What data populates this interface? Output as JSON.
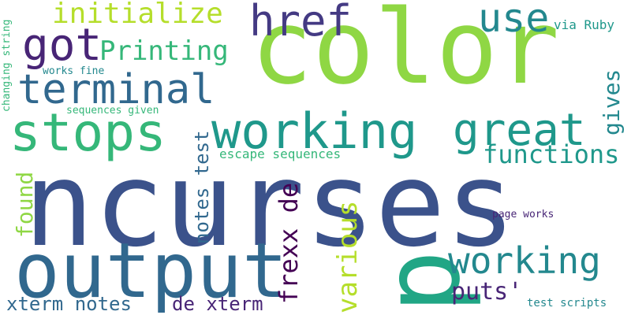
{
  "colors": {
    "lime": "#8fd744",
    "light_green": "#b5de2b",
    "green": "#35b779",
    "teal_green": "#21a685",
    "teal": "#1f988b",
    "cyan": "#23888e",
    "blue": "#31688e",
    "slate": "#3b528b",
    "indigo": "#443a83",
    "purple": "#482576",
    "dark": "#440154"
  },
  "words": {
    "ncurses": "ncurses",
    "color": "color",
    "output": "output",
    "working": "working",
    "stops": "stops",
    "p": "p",
    "great": "great",
    "terminal": "terminal",
    "got": "got",
    "href": "href",
    "use": "use",
    "working2": "working",
    "initialize": "initialize",
    "printing": "Printing",
    "functions": "functions",
    "various": "various",
    "frexx_de": "frexx de",
    "xterm_notes": "xterm notes",
    "de_xterm": "de xterm",
    "puts": "puts'",
    "gives": "gives",
    "found": "found",
    "notes_test": "notes test",
    "escape_sequences": "escape sequences",
    "via_ruby": "via Ruby",
    "test_scripts": "test scripts",
    "page_works": "page works",
    "sequences_given": "sequences given",
    "works_fine": "works fine",
    "changing_string": "changing string"
  }
}
